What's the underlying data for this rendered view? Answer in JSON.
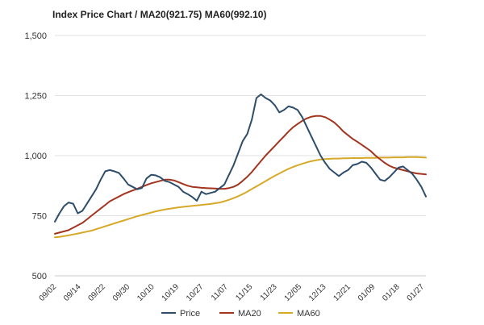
{
  "chart_data": {
    "type": "line",
    "title": "Index Price Chart / MA20(921.75) MA60(992.10)",
    "ylim": [
      500,
      1500
    ],
    "yticks": [
      500,
      750,
      1000,
      1250,
      1500
    ],
    "ytick_labels": [
      "500",
      "750",
      "1,000",
      "1,250",
      "1,500"
    ],
    "xtick_labels": [
      "09/02",
      "09/14",
      "09/22",
      "09/30",
      "10/10",
      "10/19",
      "10/27",
      "11/07",
      "11/15",
      "11/23",
      "12/05",
      "12/13",
      "12/21",
      "01/09",
      "01/18",
      "01/27"
    ],
    "grid": true,
    "legend": "bottom",
    "colors": {
      "Price": "#2e4d6b",
      "MA20": "#a3341e",
      "MA60": "#d6a928"
    },
    "series": [
      {
        "name": "Price",
        "values": [
          725,
          760,
          790,
          805,
          800,
          760,
          770,
          800,
          830,
          860,
          900,
          935,
          940,
          935,
          928,
          905,
          880,
          870,
          860,
          865,
          905,
          920,
          918,
          910,
          895,
          890,
          880,
          870,
          850,
          840,
          828,
          812,
          850,
          840,
          845,
          850,
          865,
          880,
          920,
          960,
          1010,
          1060,
          1090,
          1150,
          1240,
          1255,
          1240,
          1230,
          1210,
          1180,
          1190,
          1205,
          1200,
          1190,
          1160,
          1120,
          1080,
          1040,
          1000,
          970,
          945,
          930,
          915,
          930,
          940,
          960,
          965,
          975,
          970,
          950,
          925,
          900,
          895,
          910,
          930,
          950,
          955,
          940,
          925,
          900,
          870,
          830
        ]
      },
      {
        "name": "MA20",
        "values": [
          675,
          680,
          685,
          690,
          700,
          710,
          720,
          735,
          750,
          765,
          780,
          795,
          810,
          820,
          830,
          840,
          848,
          855,
          862,
          870,
          878,
          885,
          890,
          895,
          900,
          900,
          897,
          890,
          882,
          875,
          870,
          868,
          866,
          865,
          864,
          863,
          862,
          862,
          865,
          870,
          880,
          895,
          912,
          932,
          955,
          978,
          1000,
          1020,
          1040,
          1060,
          1080,
          1100,
          1118,
          1132,
          1145,
          1155,
          1162,
          1165,
          1165,
          1160,
          1150,
          1138,
          1120,
          1100,
          1085,
          1070,
          1058,
          1045,
          1032,
          1018,
          1000,
          985,
          970,
          958,
          950,
          945,
          940,
          935,
          930,
          926,
          924,
          922
        ]
      },
      {
        "name": "MA60",
        "values": [
          660,
          662,
          665,
          668,
          672,
          676,
          680,
          684,
          688,
          694,
          700,
          706,
          712,
          718,
          724,
          730,
          736,
          742,
          748,
          753,
          758,
          763,
          768,
          772,
          776,
          779,
          782,
          785,
          787,
          789,
          791,
          793,
          795,
          797,
          799,
          802,
          805,
          810,
          816,
          823,
          831,
          840,
          850,
          861,
          872,
          883,
          894,
          905,
          916,
          926,
          936,
          945,
          953,
          960,
          966,
          972,
          977,
          981,
          984,
          986,
          987,
          988,
          988,
          989,
          989,
          990,
          990,
          990,
          991,
          991,
          991,
          992,
          992,
          992,
          993,
          993,
          993,
          994,
          994,
          994,
          993,
          992
        ]
      }
    ]
  }
}
